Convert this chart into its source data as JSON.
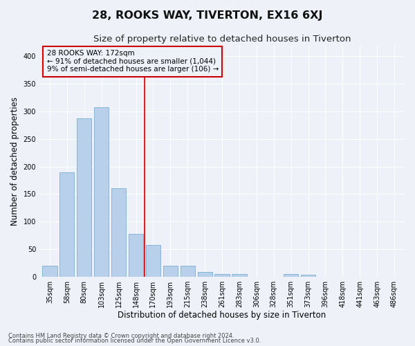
{
  "title": "28, ROOKS WAY, TIVERTON, EX16 6XJ",
  "subtitle": "Size of property relative to detached houses in Tiverton",
  "xlabel": "Distribution of detached houses by size in Tiverton",
  "ylabel": "Number of detached properties",
  "footnote1": "Contains HM Land Registry data © Crown copyright and database right 2024.",
  "footnote2": "Contains public sector information licensed under the Open Government Licence v3.0.",
  "categories": [
    "35sqm",
    "58sqm",
    "80sqm",
    "103sqm",
    "125sqm",
    "148sqm",
    "170sqm",
    "193sqm",
    "215sqm",
    "238sqm",
    "261sqm",
    "283sqm",
    "306sqm",
    "328sqm",
    "351sqm",
    "373sqm",
    "396sqm",
    "418sqm",
    "441sqm",
    "463sqm",
    "486sqm"
  ],
  "values": [
    20,
    190,
    288,
    308,
    160,
    77,
    57,
    20,
    20,
    8,
    5,
    5,
    0,
    0,
    5,
    3,
    0,
    0,
    0,
    0,
    0
  ],
  "bar_color": "#b8d0ea",
  "bar_edgecolor": "#7aaed4",
  "bar_width": 0.85,
  "vline_x": 5.5,
  "vline_color": "#cc0000",
  "annotation_line1": "28 ROOKS WAY: 172sqm",
  "annotation_line2": "← 91% of detached houses are smaller (1,044)",
  "annotation_line3": "9% of semi-detached houses are larger (106) →",
  "annotation_box_color": "#cc0000",
  "ylim": [
    0,
    420
  ],
  "yticks": [
    0,
    50,
    100,
    150,
    200,
    250,
    300,
    350,
    400
  ],
  "bg_color": "#eef2f8",
  "grid_color": "#ffffff",
  "title_fontsize": 11.5,
  "subtitle_fontsize": 9.5,
  "axis_label_fontsize": 8.5,
  "tick_fontsize": 7,
  "annotation_fontsize": 7.5
}
